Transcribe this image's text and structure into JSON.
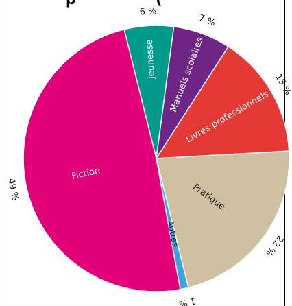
{
  "chart_data": {
    "type": "pie",
    "title": "",
    "clipped_title_fragment": "p",
    "title_suffix": "(",
    "series": [
      {
        "name": "Jeunesse",
        "value": 6,
        "value_label": "6 %",
        "color": "#009A8C"
      },
      {
        "name": "Manuels scolaires",
        "value": 7,
        "value_label": "7 %",
        "color": "#6E2585"
      },
      {
        "name": "Livres professionnels",
        "value": 15,
        "value_label": "15 %",
        "color": "#E53935"
      },
      {
        "name": "Pratique",
        "value": 22,
        "value_label": "22 %",
        "color": "#CFC0A2"
      },
      {
        "name": "Autres",
        "value": 1,
        "value_label": "1 %",
        "color": "#3EA2DC"
      },
      {
        "name": "Fiction",
        "value": 49,
        "value_label": "49 %",
        "color": "#E2007A"
      }
    ],
    "legend": "none",
    "slice_separator_color": "#ffffff"
  }
}
